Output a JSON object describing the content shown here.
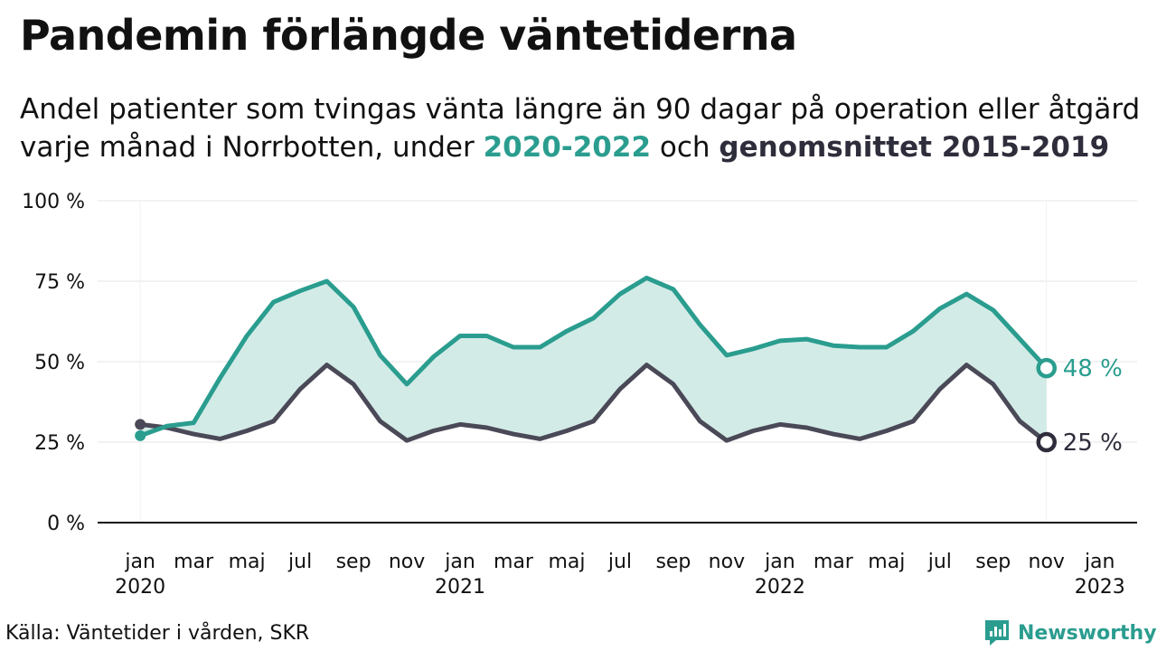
{
  "header": {
    "title": "Pandemin förlängde väntetiderna",
    "subtitle_line1": "Andel patienter som tvingas vänta längre än 90 dagar på operation eller åtgärd",
    "subtitle_line2_pre": "varje månad i Norrbotten, under ",
    "subtitle_hl1": "2020-2022",
    "subtitle_mid": " och ",
    "subtitle_hl2": "genomsnittet 2015-2019"
  },
  "footer": {
    "source": "Källa: Väntetider i vården, SKR",
    "brand": "Newsworthy"
  },
  "colors": {
    "series_2020_2022": "#2a9d8f",
    "series_avg": "#4a4957",
    "fill": "#d3ebe7",
    "axis": "#111111",
    "grid": "#e6e6e6"
  },
  "chart_data": {
    "type": "line",
    "title": "Pandemin förlängde väntetiderna",
    "xlabel": "",
    "ylabel": "",
    "ylim": [
      0,
      100
    ],
    "y_ticks": [
      {
        "value": 0,
        "label": "0 %"
      },
      {
        "value": 25,
        "label": "25 %"
      },
      {
        "value": 50,
        "label": "50 %"
      },
      {
        "value": 75,
        "label": "75 %"
      },
      {
        "value": 100,
        "label": "100 %"
      }
    ],
    "x_ticks": [
      {
        "index": 0,
        "month": "jan",
        "year": "2020"
      },
      {
        "index": 2,
        "month": "mar",
        "year": ""
      },
      {
        "index": 4,
        "month": "maj",
        "year": ""
      },
      {
        "index": 6,
        "month": "jul",
        "year": ""
      },
      {
        "index": 8,
        "month": "sep",
        "year": ""
      },
      {
        "index": 10,
        "month": "nov",
        "year": ""
      },
      {
        "index": 12,
        "month": "jan",
        "year": "2021"
      },
      {
        "index": 14,
        "month": "mar",
        "year": ""
      },
      {
        "index": 16,
        "month": "maj",
        "year": ""
      },
      {
        "index": 18,
        "month": "jul",
        "year": ""
      },
      {
        "index": 20,
        "month": "sep",
        "year": ""
      },
      {
        "index": 22,
        "month": "nov",
        "year": ""
      },
      {
        "index": 24,
        "month": "jan",
        "year": "2022"
      },
      {
        "index": 26,
        "month": "mar",
        "year": ""
      },
      {
        "index": 28,
        "month": "maj",
        "year": ""
      },
      {
        "index": 30,
        "month": "jul",
        "year": ""
      },
      {
        "index": 32,
        "month": "sep",
        "year": ""
      },
      {
        "index": 34,
        "month": "nov",
        "year": ""
      },
      {
        "index": 36,
        "month": "jan",
        "year": "2023"
      }
    ],
    "x_range": [
      -1.6,
      37.4
    ],
    "x": [
      "2020-01",
      "2020-02",
      "2020-03",
      "2020-04",
      "2020-05",
      "2020-06",
      "2020-07",
      "2020-08",
      "2020-09",
      "2020-10",
      "2020-11",
      "2020-12",
      "2021-01",
      "2021-02",
      "2021-03",
      "2021-04",
      "2021-05",
      "2021-06",
      "2021-07",
      "2021-08",
      "2021-09",
      "2021-10",
      "2021-11",
      "2021-12",
      "2022-01",
      "2022-02",
      "2022-03",
      "2022-04",
      "2022-05",
      "2022-06",
      "2022-07",
      "2022-08",
      "2022-09",
      "2022-10",
      "2022-11"
    ],
    "series": [
      {
        "name": "2020-2022",
        "values": [
          27,
          30,
          31,
          45,
          58,
          68.5,
          72,
          75,
          67,
          52,
          43,
          51.5,
          58,
          58,
          54.5,
          54.5,
          59.5,
          63.5,
          71,
          76,
          72.5,
          61.5,
          52,
          54,
          56.5,
          57,
          55,
          54.5,
          54.5,
          59.5,
          66.5,
          71,
          66,
          57,
          48
        ],
        "end_label": "48 %"
      },
      {
        "name": "genomsnittet 2015-2019",
        "values": [
          30.5,
          29.5,
          27.5,
          26,
          28.5,
          31.5,
          41.5,
          49,
          43,
          31.5,
          25.5,
          28.5,
          30.5,
          29.5,
          27.5,
          26,
          28.5,
          31.5,
          41.5,
          49,
          43,
          31.5,
          25.5,
          28.5,
          30.5,
          29.5,
          27.5,
          26,
          28.5,
          31.5,
          41.5,
          49,
          43,
          31.5,
          25
        ],
        "end_label": "25 %"
      }
    ]
  }
}
